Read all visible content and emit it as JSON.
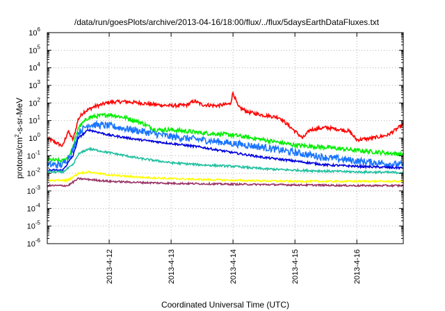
{
  "chart_data": {
    "type": "line",
    "title": "/data/run/goesPlots/archive/2013-04-16/18:00/flux/../flux/5daysEarthDataFluxes.txt",
    "xlabel": "Coordinated Universal Time (UTC)",
    "ylabel": "protons/cm²-s-sr-MeV",
    "ylabel_parts": {
      "base": "protons/cm",
      "sup": "2",
      "rest": "-s-sr-MeV"
    },
    "y_scale": "log",
    "ylim": [
      1e-06,
      1000000.0
    ],
    "y_ticks": [
      {
        "exp": -6,
        "base": "10",
        "sup": "-6"
      },
      {
        "exp": -5,
        "base": "10",
        "sup": "-5"
      },
      {
        "exp": -4,
        "base": "10",
        "sup": "-4"
      },
      {
        "exp": -3,
        "base": "10",
        "sup": "-3"
      },
      {
        "exp": -2,
        "base": "10",
        "sup": "-2"
      },
      {
        "exp": -1,
        "base": "10",
        "sup": "-1"
      },
      {
        "exp": 0,
        "base": "10",
        "sup": "0"
      },
      {
        "exp": 1,
        "base": "10",
        "sup": "1"
      },
      {
        "exp": 2,
        "base": "10",
        "sup": "2"
      },
      {
        "exp": 3,
        "base": "10",
        "sup": "3"
      },
      {
        "exp": 4,
        "base": "10",
        "sup": "4"
      },
      {
        "exp": 5,
        "base": "10",
        "sup": "5"
      },
      {
        "exp": 6,
        "base": "10",
        "sup": "6"
      }
    ],
    "xlim": [
      "2013-04-11 00:00",
      "2013-04-16 18:00"
    ],
    "x_ticks": [
      {
        "t": "2013-04-12 00:00",
        "label": "2013-4-12"
      },
      {
        "t": "2013-04-13 00:00",
        "label": "2013-4-13"
      },
      {
        "t": "2013-04-14 00:00",
        "label": "2013-4-14"
      },
      {
        "t": "2013-04-15 00:00",
        "label": "2013-4-15"
      },
      {
        "t": "2013-04-16 00:00",
        "label": "2013-4-16"
      }
    ],
    "grid": true,
    "series": [
      {
        "color": "#ff0000",
        "noise": 0.1,
        "points": [
          [
            "2013-04-11 00:00",
            1.0
          ],
          [
            "2013-04-11 06:00",
            0.35
          ],
          [
            "2013-04-11 08:00",
            2.5
          ],
          [
            "2013-04-11 10:00",
            0.8
          ],
          [
            "2013-04-11 12:00",
            12
          ],
          [
            "2013-04-11 14:00",
            30
          ],
          [
            "2013-04-11 18:00",
            60
          ],
          [
            "2013-04-12 00:00",
            110
          ],
          [
            "2013-04-12 06:00",
            120
          ],
          [
            "2013-04-12 12:00",
            100
          ],
          [
            "2013-04-12 18:00",
            80
          ],
          [
            "2013-04-13 00:00",
            70
          ],
          [
            "2013-04-13 06:00",
            75
          ],
          [
            "2013-04-13 09:00",
            130
          ],
          [
            "2013-04-13 12:00",
            80
          ],
          [
            "2013-04-13 18:00",
            70
          ],
          [
            "2013-04-13 23:00",
            90
          ],
          [
            "2013-04-14 00:00",
            400
          ],
          [
            "2013-04-14 02:00",
            60
          ],
          [
            "2013-04-14 06:00",
            30
          ],
          [
            "2013-04-14 12:00",
            20
          ],
          [
            "2013-04-14 18:00",
            15
          ],
          [
            "2013-04-15 00:00",
            2.5
          ],
          [
            "2013-04-15 03:00",
            1.0
          ],
          [
            "2013-04-15 06:00",
            3
          ],
          [
            "2013-04-15 12:00",
            4
          ],
          [
            "2013-04-15 18:00",
            3
          ],
          [
            "2013-04-15 21:00",
            2.5
          ],
          [
            "2013-04-16 00:00",
            0.8
          ],
          [
            "2013-04-16 06:00",
            1.0
          ],
          [
            "2013-04-16 12:00",
            1.5
          ],
          [
            "2013-04-16 15:00",
            3
          ],
          [
            "2013-04-16 18:00",
            6
          ]
        ]
      },
      {
        "color": "#00ee00",
        "noise": 0.12,
        "points": [
          [
            "2013-04-11 00:00",
            0.06
          ],
          [
            "2013-04-11 06:00",
            0.05
          ],
          [
            "2013-04-11 08:00",
            0.08
          ],
          [
            "2013-04-11 10:00",
            0.3
          ],
          [
            "2013-04-11 12:00",
            4
          ],
          [
            "2013-04-11 16:00",
            15
          ],
          [
            "2013-04-12 00:00",
            22
          ],
          [
            "2013-04-12 06:00",
            15
          ],
          [
            "2013-04-12 12:00",
            8
          ],
          [
            "2013-04-12 18:00",
            3
          ],
          [
            "2013-04-13 00:00",
            3
          ],
          [
            "2013-04-13 12:00",
            2
          ],
          [
            "2013-04-14 00:00",
            1.5
          ],
          [
            "2013-04-14 12:00",
            0.8
          ],
          [
            "2013-04-15 00:00",
            0.4
          ],
          [
            "2013-04-15 12:00",
            0.3
          ],
          [
            "2013-04-16 00:00",
            0.2
          ],
          [
            "2013-04-16 18:00",
            0.12
          ]
        ]
      },
      {
        "color": "#1a75ff",
        "noise": 0.2,
        "points": [
          [
            "2013-04-11 00:00",
            0.03
          ],
          [
            "2013-04-11 06:00",
            0.03
          ],
          [
            "2013-04-11 10:00",
            0.2
          ],
          [
            "2013-04-11 12:00",
            2
          ],
          [
            "2013-04-11 16:00",
            6
          ],
          [
            "2013-04-12 00:00",
            5
          ],
          [
            "2013-04-12 12:00",
            2.5
          ],
          [
            "2013-04-13 00:00",
            1.2
          ],
          [
            "2013-04-13 12:00",
            0.8
          ],
          [
            "2013-04-14 00:00",
            0.5
          ],
          [
            "2013-04-14 12:00",
            0.3
          ],
          [
            "2013-04-15 00:00",
            0.15
          ],
          [
            "2013-04-15 12:00",
            0.08
          ],
          [
            "2013-04-16 00:00",
            0.05
          ],
          [
            "2013-04-16 18:00",
            0.03
          ]
        ]
      },
      {
        "color": "#0000dd",
        "noise": 0.06,
        "points": [
          [
            "2013-04-11 00:00",
            0.015
          ],
          [
            "2013-04-11 06:00",
            0.015
          ],
          [
            "2013-04-11 10:00",
            0.1
          ],
          [
            "2013-04-11 12:00",
            1.0
          ],
          [
            "2013-04-11 16:00",
            3
          ],
          [
            "2013-04-12 00:00",
            1.5
          ],
          [
            "2013-04-12 12:00",
            0.8
          ],
          [
            "2013-04-13 00:00",
            0.5
          ],
          [
            "2013-04-13 12:00",
            0.3
          ],
          [
            "2013-04-14 00:00",
            0.15
          ],
          [
            "2013-04-14 12:00",
            0.08
          ],
          [
            "2013-04-15 00:00",
            0.05
          ],
          [
            "2013-04-15 12:00",
            0.03
          ],
          [
            "2013-04-16 00:00",
            0.025
          ],
          [
            "2013-04-16 18:00",
            0.02
          ]
        ]
      },
      {
        "color": "#20c0a0",
        "noise": 0.06,
        "points": [
          [
            "2013-04-11 00:00",
            0.012
          ],
          [
            "2013-04-11 06:00",
            0.012
          ],
          [
            "2013-04-11 10:00",
            0.03
          ],
          [
            "2013-04-11 12:00",
            0.12
          ],
          [
            "2013-04-11 16:00",
            0.25
          ],
          [
            "2013-04-12 00:00",
            0.15
          ],
          [
            "2013-04-12 12:00",
            0.07
          ],
          [
            "2013-04-13 00:00",
            0.04
          ],
          [
            "2013-04-13 12:00",
            0.03
          ],
          [
            "2013-04-14 00:00",
            0.025
          ],
          [
            "2013-04-14 12:00",
            0.018
          ],
          [
            "2013-04-15 00:00",
            0.015
          ],
          [
            "2013-04-16 00:00",
            0.012
          ],
          [
            "2013-04-16 18:00",
            0.011
          ]
        ]
      },
      {
        "color": "#ffff00",
        "noise": 0.05,
        "points": [
          [
            "2013-04-11 00:00",
            0.004
          ],
          [
            "2013-04-11 08:00",
            0.004
          ],
          [
            "2013-04-11 12:00",
            0.01
          ],
          [
            "2013-04-11 16:00",
            0.012
          ],
          [
            "2013-04-12 00:00",
            0.008
          ],
          [
            "2013-04-12 12:00",
            0.006
          ],
          [
            "2013-04-13 00:00",
            0.005
          ],
          [
            "2013-04-14 00:00",
            0.004
          ],
          [
            "2013-04-15 00:00",
            0.0035
          ],
          [
            "2013-04-16 00:00",
            0.0035
          ],
          [
            "2013-04-16 18:00",
            0.0035
          ]
        ]
      },
      {
        "color": "#993366",
        "noise": 0.05,
        "points": [
          [
            "2013-04-11 00:00",
            0.002
          ],
          [
            "2013-04-11 08:00",
            0.002
          ],
          [
            "2013-04-11 12:00",
            0.005
          ],
          [
            "2013-04-11 16:00",
            0.0045
          ],
          [
            "2013-04-12 00:00",
            0.0035
          ],
          [
            "2013-04-12 12:00",
            0.003
          ],
          [
            "2013-04-13 00:00",
            0.0027
          ],
          [
            "2013-04-14 00:00",
            0.0024
          ],
          [
            "2013-04-15 00:00",
            0.0022
          ],
          [
            "2013-04-16 00:00",
            0.002
          ],
          [
            "2013-04-16 18:00",
            0.002
          ]
        ]
      }
    ]
  }
}
